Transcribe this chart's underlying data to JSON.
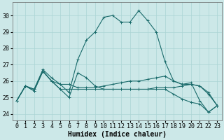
{
  "xlabel": "Humidex (Indice chaleur)",
  "bg_color": "#cce8e8",
  "grid_color": "#aad4d4",
  "line_color": "#1a6b6b",
  "x": [
    0,
    1,
    2,
    3,
    4,
    5,
    6,
    7,
    8,
    9,
    10,
    11,
    12,
    13,
    14,
    15,
    16,
    17,
    18,
    19,
    20,
    21,
    22,
    23
  ],
  "series": [
    [
      24.8,
      25.7,
      25.5,
      26.6,
      26.0,
      25.8,
      25.3,
      27.3,
      28.5,
      29.0,
      29.9,
      30.0,
      29.6,
      29.6,
      30.3,
      29.7,
      29.0,
      27.2,
      26.0,
      25.8,
      25.9,
      24.8,
      24.1,
      24.5
    ],
    [
      24.8,
      25.7,
      25.5,
      26.7,
      26.2,
      25.8,
      25.8,
      25.6,
      25.6,
      25.6,
      25.7,
      25.8,
      25.9,
      26.0,
      26.0,
      26.1,
      26.2,
      26.3,
      26.0,
      25.8,
      25.8,
      25.7,
      25.2,
      24.5
    ],
    [
      24.8,
      25.7,
      25.4,
      26.6,
      26.0,
      25.5,
      25.5,
      25.5,
      25.5,
      25.5,
      25.5,
      25.5,
      25.5,
      25.5,
      25.5,
      25.5,
      25.6,
      25.6,
      25.6,
      25.7,
      25.8,
      25.7,
      25.3,
      24.5
    ],
    [
      24.8,
      25.7,
      25.4,
      26.6,
      26.0,
      25.5,
      25.0,
      26.5,
      26.2,
      25.7,
      25.5,
      25.5,
      25.5,
      25.5,
      25.5,
      25.5,
      25.5,
      25.5,
      25.2,
      24.9,
      24.7,
      24.6,
      24.1,
      24.5
    ]
  ],
  "ylim": [
    23.6,
    30.8
  ],
  "yticks": [
    24,
    25,
    26,
    27,
    28,
    29,
    30
  ],
  "xlim": [
    -0.5,
    23.5
  ],
  "xlabel_fontsize": 7,
  "tick_fontsize": 6,
  "linewidth": 0.8,
  "markersize": 3.0,
  "markeredgewidth": 0.7
}
